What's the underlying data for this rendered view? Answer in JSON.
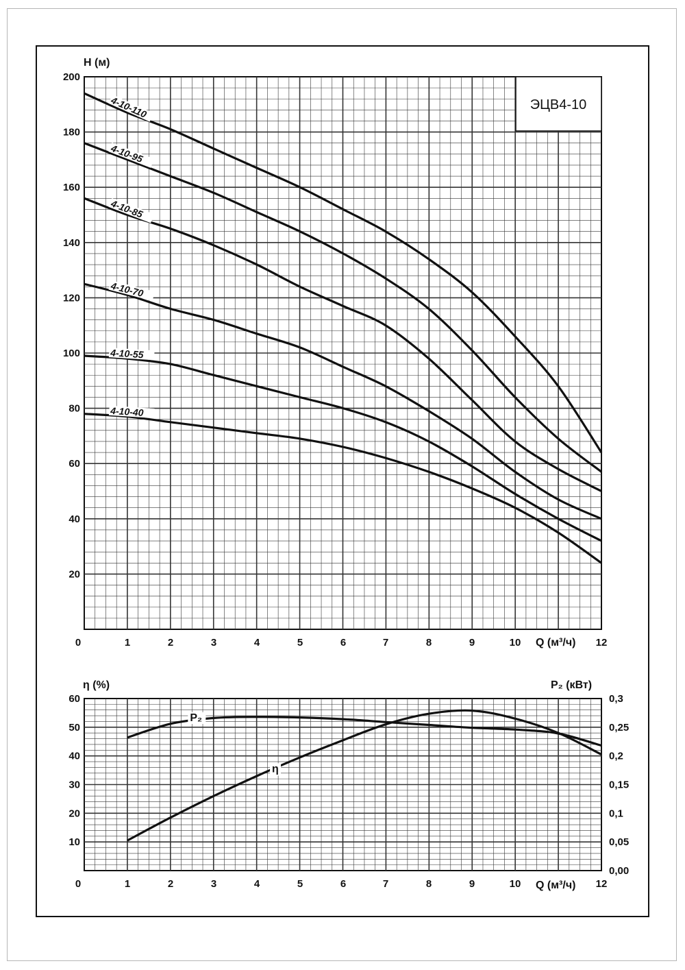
{
  "chart_data": [
    {
      "type": "line",
      "title": "ЭЦВ4-10",
      "xlabel": "Q (м³/ч)",
      "ylabel": "H (м)",
      "xlim": [
        0,
        12
      ],
      "ylim": [
        0,
        200
      ],
      "grid": true,
      "x_ticks": [
        "0",
        "1",
        "2",
        "3",
        "4",
        "5",
        "6",
        "7",
        "8",
        "9",
        "10",
        "12"
      ],
      "y_ticks": [
        "20",
        "40",
        "60",
        "80",
        "100",
        "120",
        "140",
        "160",
        "180",
        "200"
      ],
      "x": [
        0,
        1,
        2,
        3,
        4,
        5,
        6,
        7,
        8,
        9,
        10,
        11,
        12
      ],
      "series": [
        {
          "name": "4-10-110",
          "values": [
            194,
            187,
            181,
            174,
            167,
            160,
            152,
            144,
            134,
            122,
            106,
            88,
            64
          ]
        },
        {
          "name": "4-10-95",
          "values": [
            176,
            170,
            164,
            158,
            151,
            144,
            136,
            127,
            116,
            101,
            84,
            69,
            57
          ]
        },
        {
          "name": "4-10-85",
          "values": [
            156,
            150,
            145,
            139,
            132,
            124,
            117,
            110,
            98,
            83,
            68,
            58,
            50
          ]
        },
        {
          "name": "4-10-70",
          "values": [
            125,
            121,
            116,
            112,
            107,
            102,
            95,
            88,
            79,
            69,
            57,
            47,
            40
          ]
        },
        {
          "name": "4-10-55",
          "values": [
            99,
            98,
            96,
            92,
            88,
            84,
            80,
            75,
            68,
            59,
            49,
            40,
            32
          ]
        },
        {
          "name": "4-10-40",
          "values": [
            78,
            77,
            75,
            73,
            71,
            69,
            66,
            62,
            57,
            51,
            44,
            35,
            24
          ]
        }
      ]
    },
    {
      "type": "line",
      "xlabel": "Q (м³/ч)",
      "ylabel": "η (%)",
      "y2label": "P₂ (кВт)",
      "xlim": [
        0,
        12
      ],
      "ylim": [
        0,
        60
      ],
      "y2lim": [
        0,
        0.3
      ],
      "grid": true,
      "x_ticks": [
        "0",
        "1",
        "2",
        "3",
        "4",
        "5",
        "6",
        "7",
        "8",
        "9",
        "10",
        "12"
      ],
      "y_ticks": [
        "10",
        "20",
        "30",
        "40",
        "50",
        "60"
      ],
      "y2_ticks": [
        "0,00",
        "0,05",
        "0,1",
        "0,15",
        "0,2",
        "0,25",
        "0,3"
      ],
      "series": [
        {
          "name": "η",
          "axis": "left",
          "x": [
            1,
            2,
            3,
            4,
            5,
            6,
            7,
            8,
            9,
            10,
            11,
            12
          ],
          "values": [
            10.5,
            18.5,
            26,
            33,
            39.5,
            45.5,
            51,
            54.7,
            55.8,
            53,
            48,
            40.5
          ]
        },
        {
          "name": "P₂",
          "axis": "right",
          "x": [
            1,
            2,
            3,
            4,
            5,
            6,
            7,
            8,
            9,
            10,
            11,
            12
          ],
          "values": [
            0.232,
            0.256,
            0.266,
            0.268,
            0.267,
            0.264,
            0.259,
            0.254,
            0.249,
            0.246,
            0.239,
            0.218
          ]
        }
      ]
    }
  ]
}
